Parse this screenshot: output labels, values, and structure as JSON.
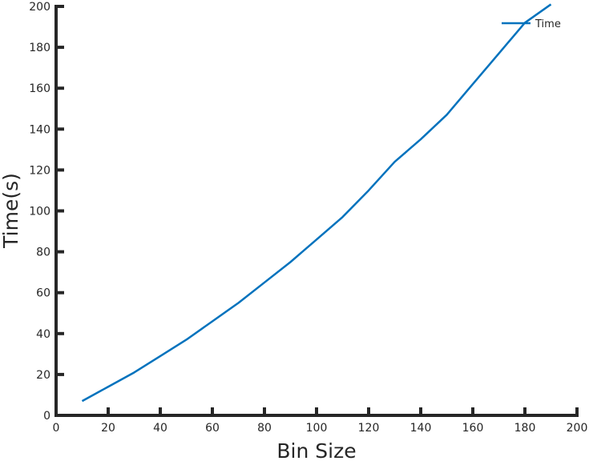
{
  "chart_data": {
    "type": "line",
    "xlabel": "Bin Size",
    "ylabel": "Time(s)",
    "xlim": [
      0,
      200
    ],
    "ylim": [
      0,
      200
    ],
    "xticks": [
      0,
      20,
      40,
      60,
      80,
      100,
      120,
      140,
      160,
      180,
      200
    ],
    "yticks": [
      0,
      20,
      40,
      60,
      80,
      100,
      120,
      140,
      160,
      180,
      200
    ],
    "grid": false,
    "legend_position": "top-right",
    "series": [
      {
        "name": "Time",
        "color": "#0072bd",
        "x": [
          10,
          20,
          30,
          40,
          50,
          60,
          70,
          80,
          90,
          100,
          110,
          120,
          130,
          140,
          150,
          160,
          170,
          180,
          190
        ],
        "y": [
          7,
          14,
          21,
          29,
          37,
          46,
          55,
          65,
          75,
          86,
          97,
          110,
          124,
          135,
          147,
          162,
          177,
          192,
          201
        ]
      }
    ]
  }
}
